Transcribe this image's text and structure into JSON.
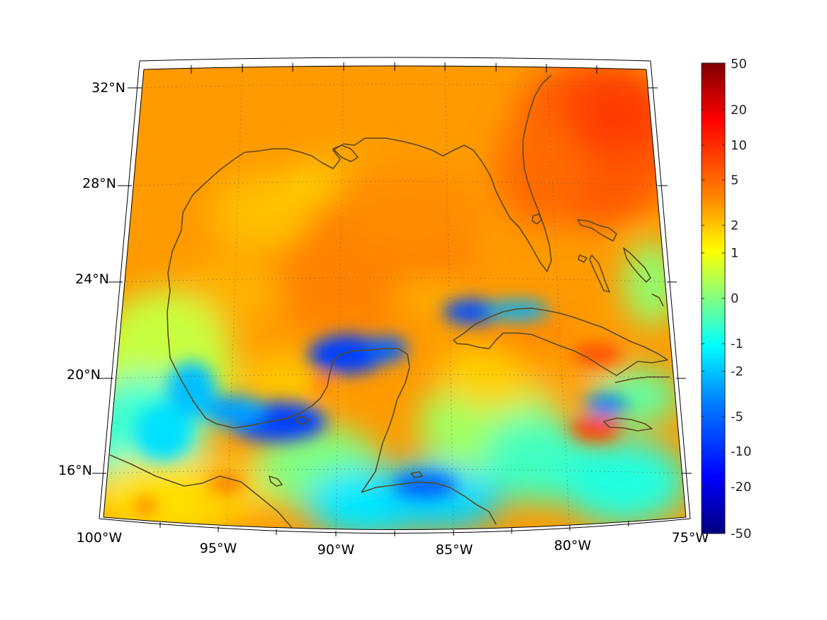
{
  "map": {
    "lon_labels": [
      "100°W",
      "95°W",
      "90°W",
      "85°W",
      "80°W",
      "75°W"
    ],
    "lat_labels": [
      "32°N",
      "28°N",
      "24°N",
      "20°N",
      "16°N"
    ],
    "extent": {
      "lon_min": -100,
      "lon_max": -75,
      "lat_min": 14,
      "lat_max": 33
    },
    "coastline_color": "#5a4a1e",
    "graticule": "dotted"
  },
  "colorbar": {
    "ticks": [
      "50",
      "20",
      "10",
      "5",
      "2",
      "1",
      "0",
      "-1",
      "-2",
      "-5",
      "-10",
      "-20",
      "-50"
    ],
    "range": [
      -50,
      50
    ],
    "scale": "symmetric-log",
    "colormap": "jet",
    "stops": [
      "#00007f",
      "#0000ff",
      "#0080ff",
      "#00ffff",
      "#80ff80",
      "#ffff00",
      "#ff8000",
      "#ff0000",
      "#7f0000"
    ]
  }
}
